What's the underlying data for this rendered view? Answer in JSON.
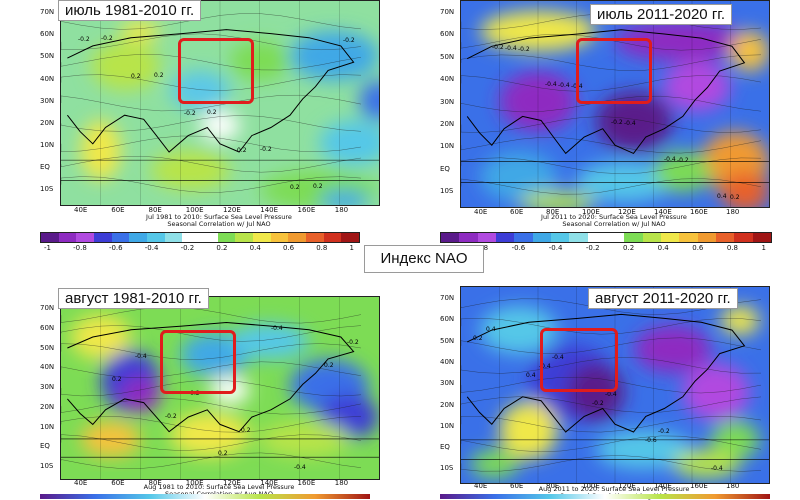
{
  "nao_label": "Индекс NAO",
  "colorbar_ticks": [
    "-1",
    "-0.8",
    "-0.6",
    "-0.4",
    "-0.2",
    "0.2",
    "0.4",
    "0.6",
    "0.8",
    "1"
  ],
  "colorbar_colors": [
    "#5a1a8a",
    "#8e2bc1",
    "#b14ae0",
    "#3d3dd6",
    "#3a70e8",
    "#3fa8e6",
    "#55c7e8",
    "#8fe0e8",
    "#ffffff",
    "#ffffff",
    "#7ddc55",
    "#b8e44a",
    "#f0e84a",
    "#f7c23c",
    "#f09a30",
    "#e8602a",
    "#d0301e",
    "#a01515"
  ],
  "panels": [
    {
      "title": "июль 1981-2010 гг.",
      "caption_line1": "Jul 1981 to 2010: Surface Sea Level Pressure",
      "caption_line2": "Seasonal Correlation w/ Jul NAO",
      "lat_labels": [
        "70N",
        "60N",
        "50N",
        "40N",
        "30N",
        "20N",
        "10N",
        "EQ",
        "10S"
      ],
      "lon_labels": [
        "40E",
        "60E",
        "80E",
        "100E",
        "120E",
        "140E",
        "160E",
        "180"
      ],
      "contour_labels": [
        "-0.2",
        "0.2",
        "0.2",
        "-0.2",
        "0.2",
        "-0.2",
        "0.2",
        "-0.2",
        "0.2",
        "0.2",
        "-0.2"
      ]
    },
    {
      "title": "июль 2011-2020 гг.",
      "caption_line1": "Jul 2011 to 2020: Surface Sea Level Pressure",
      "caption_line2": "Seasonal Correlation w/ Jul NAO",
      "lat_labels": [
        "70N",
        "60N",
        "50N",
        "40N",
        "30N",
        "20N",
        "10N",
        "EQ",
        "10S"
      ],
      "lon_labels": [
        "40E",
        "60E",
        "80E",
        "100E",
        "120E",
        "140E",
        "160E",
        "180"
      ],
      "contour_labels": [
        "-0.2",
        "-0.4",
        "-0.4",
        "-0.2",
        "0.2",
        "-0.4",
        "-0.4",
        "-0.2",
        "-0.4",
        "0.4",
        "-0.2",
        "-0.4"
      ]
    },
    {
      "title": "август 1981-2010 гг.",
      "caption_line1": "Aug 1981 to 2010: Surface Sea Level Pressure",
      "caption_line2": "Seasonal Correlation w/ Aug NAO",
      "lat_labels": [
        "70N",
        "60N",
        "50N",
        "40N",
        "30N",
        "20N",
        "10N",
        "EQ",
        "10S"
      ],
      "lon_labels": [
        "40E",
        "60E",
        "80E",
        "100E",
        "120E",
        "140E",
        "160E",
        "180"
      ],
      "contour_labels": [
        "-0.4",
        "-0.2",
        "0.2",
        "-0.4",
        "-0.2",
        "0.2",
        "-0.2",
        "0.2",
        "-0.4",
        "0.2"
      ]
    },
    {
      "title": "август 2011-2020 гг.",
      "caption_line1": "Aug 2011 to 2020: Surface Sea Level Pressure",
      "caption_line2": "Seasonal Correlation w/ Aug NAO",
      "lat_labels": [
        "70N",
        "60N",
        "50N",
        "40N",
        "30N",
        "20N",
        "10N",
        "EQ",
        "10S"
      ],
      "lon_labels": [
        "40E",
        "60E",
        "80E",
        "100E",
        "120E",
        "140E",
        "160E",
        "180"
      ],
      "contour_labels": [
        "-0.4",
        "-0.4",
        "-0.2",
        "-0.4",
        "0.4",
        "-0.4",
        "-0.2",
        "-0.6",
        "-0.4",
        "0.2",
        "0.4"
      ]
    }
  ]
}
